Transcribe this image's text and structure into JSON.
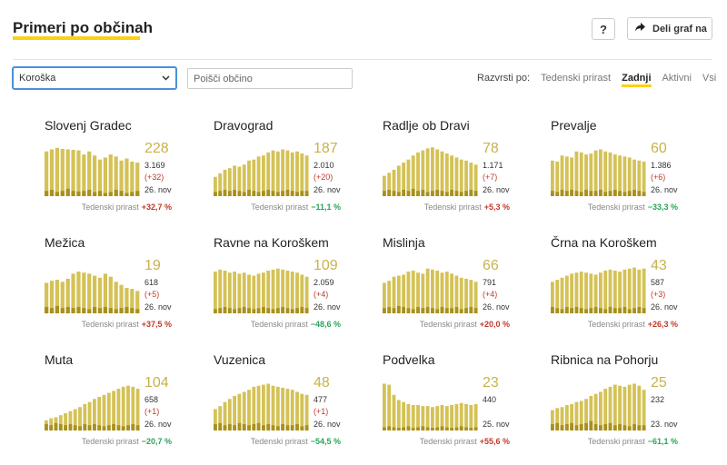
{
  "header": {
    "title": "Primeri po občinah",
    "help_label": "?",
    "share_label": "Deli graf na"
  },
  "filters": {
    "region_value": "Koroška",
    "search_placeholder": "Poišči občino",
    "sort_label": "Razvrsti po:",
    "sort_options": [
      "Tedenski prirast",
      "Zadnji",
      "Aktivni",
      "Vsi"
    ],
    "sort_active": 1
  },
  "colors": {
    "bar": "#d4c256",
    "bar_dark": "#a8901f",
    "accent": "#fcd116",
    "up": "#c0392b",
    "down": "#27a559"
  },
  "growth_label": "Tedenski prirast",
  "municipalities": [
    {
      "name": "Slovenj Gradec",
      "active": "228",
      "total": "3.169",
      "delta": "(+32)",
      "date": "26. nov",
      "growth": "+32,7 %",
      "trend": "up",
      "bars": [
        88,
        92,
        95,
        93,
        92,
        91,
        90,
        82,
        88,
        80,
        72,
        76,
        82,
        78,
        70,
        74,
        68,
        66
      ],
      "low": [
        0.1,
        0.12,
        0.08,
        0.1,
        0.14,
        0.1,
        0.09,
        0.1,
        0.12,
        0.08,
        0.1,
        0.06,
        0.08,
        0.12,
        0.1,
        0.06,
        0.08,
        0.1
      ]
    },
    {
      "name": "Dravograd",
      "active": "187",
      "total": "2.010",
      "delta": "(+20)",
      "date": "26. nov",
      "growth": "−11,1 %",
      "trend": "down",
      "bars": [
        38,
        45,
        52,
        55,
        60,
        58,
        62,
        70,
        72,
        78,
        80,
        86,
        90,
        88,
        92,
        90,
        86,
        88,
        84,
        80
      ],
      "low": [
        0.08,
        0.1,
        0.12,
        0.1,
        0.12,
        0.1,
        0.08,
        0.12,
        0.1,
        0.08,
        0.1,
        0.12,
        0.1,
        0.08,
        0.1,
        0.12,
        0.1,
        0.08,
        0.1,
        0.1
      ]
    },
    {
      "name": "Radlje ob Dravi",
      "active": "78",
      "total": "1.171",
      "delta": "(+7)",
      "date": "26. nov",
      "growth": "+5,3 %",
      "trend": "up",
      "bars": [
        40,
        46,
        52,
        60,
        66,
        72,
        80,
        86,
        90,
        94,
        96,
        92,
        88,
        84,
        80,
        76,
        72,
        70,
        66,
        62
      ],
      "low": [
        0.1,
        0.12,
        0.1,
        0.08,
        0.12,
        0.1,
        0.14,
        0.1,
        0.12,
        0.08,
        0.1,
        0.12,
        0.1,
        0.08,
        0.12,
        0.1,
        0.08,
        0.1,
        0.12,
        0.1
      ]
    },
    {
      "name": "Prevalje",
      "active": "60",
      "total": "1.386",
      "delta": "(+6)",
      "date": "26. nov",
      "growth": "−33,3 %",
      "trend": "down",
      "bars": [
        70,
        68,
        80,
        78,
        76,
        88,
        86,
        82,
        84,
        90,
        92,
        88,
        86,
        82,
        80,
        78,
        76,
        72,
        70,
        68
      ],
      "low": [
        0.1,
        0.08,
        0.12,
        0.1,
        0.12,
        0.1,
        0.08,
        0.12,
        0.1,
        0.1,
        0.12,
        0.08,
        0.1,
        0.12,
        0.1,
        0.08,
        0.1,
        0.12,
        0.1,
        0.08
      ]
    },
    {
      "name": "Mežica",
      "active": "19",
      "total": "618",
      "delta": "(+5)",
      "date": "26. nov",
      "growth": "+37,5 %",
      "trend": "up",
      "bars": [
        60,
        64,
        66,
        62,
        68,
        78,
        82,
        80,
        78,
        74,
        70,
        78,
        72,
        62,
        56,
        50,
        48,
        44
      ],
      "low": [
        0.12,
        0.1,
        0.14,
        0.1,
        0.12,
        0.1,
        0.12,
        0.1,
        0.08,
        0.12,
        0.1,
        0.12,
        0.1,
        0.08,
        0.1,
        0.12,
        0.1,
        0.08
      ]
    },
    {
      "name": "Ravne na Koroškem",
      "active": "109",
      "total": "2.059",
      "delta": "(+4)",
      "date": "26. nov",
      "growth": "−48,6 %",
      "trend": "down",
      "bars": [
        82,
        86,
        84,
        80,
        82,
        78,
        80,
        76,
        74,
        78,
        80,
        84,
        86,
        88,
        86,
        84,
        82,
        80,
        76,
        72
      ],
      "low": [
        0.08,
        0.1,
        0.12,
        0.1,
        0.08,
        0.1,
        0.12,
        0.1,
        0.08,
        0.1,
        0.12,
        0.1,
        0.08,
        0.1,
        0.12,
        0.1,
        0.08,
        0.1,
        0.12,
        0.1
      ]
    },
    {
      "name": "Mislinja",
      "active": "66",
      "total": "791",
      "delta": "(+4)",
      "date": "26. nov",
      "growth": "+20,0 %",
      "trend": "up",
      "bars": [
        60,
        64,
        72,
        74,
        76,
        82,
        84,
        80,
        78,
        88,
        86,
        84,
        80,
        82,
        78,
        74,
        70,
        68,
        66,
        62
      ],
      "low": [
        0.1,
        0.12,
        0.1,
        0.14,
        0.12,
        0.1,
        0.08,
        0.12,
        0.1,
        0.12,
        0.1,
        0.08,
        0.12,
        0.1,
        0.1,
        0.12,
        0.08,
        0.1,
        0.12,
        0.1
      ]
    },
    {
      "name": "Črna na Koroškem",
      "active": "43",
      "total": "587",
      "delta": "(+3)",
      "date": "26. nov",
      "growth": "+26,3 %",
      "trend": "up",
      "bars": [
        62,
        66,
        70,
        74,
        78,
        80,
        82,
        80,
        78,
        76,
        80,
        84,
        86,
        84,
        82,
        86,
        88,
        90,
        86,
        88
      ],
      "low": [
        0.12,
        0.1,
        0.08,
        0.12,
        0.1,
        0.12,
        0.1,
        0.08,
        0.1,
        0.12,
        0.1,
        0.08,
        0.12,
        0.1,
        0.1,
        0.12,
        0.08,
        0.1,
        0.12,
        0.1
      ]
    },
    {
      "name": "Muta",
      "active": "104",
      "total": "658",
      "delta": "(+1)",
      "date": "26. nov",
      "growth": "−20,7 %",
      "trend": "down",
      "bars": [
        20,
        24,
        26,
        30,
        34,
        38,
        42,
        46,
        52,
        56,
        62,
        66,
        70,
        74,
        78,
        82,
        86,
        88,
        86,
        82
      ],
      "low": [
        0.12,
        0.1,
        0.14,
        0.12,
        0.1,
        0.12,
        0.1,
        0.08,
        0.12,
        0.1,
        0.12,
        0.1,
        0.08,
        0.1,
        0.12,
        0.1,
        0.08,
        0.1,
        0.12,
        0.1
      ]
    },
    {
      "name": "Vuzenica",
      "active": "48",
      "total": "477",
      "delta": "(+1)",
      "date": "26. nov",
      "growth": "−54,5 %",
      "trend": "down",
      "bars": [
        42,
        48,
        56,
        62,
        68,
        72,
        76,
        80,
        86,
        88,
        90,
        92,
        88,
        86,
        84,
        82,
        80,
        76,
        72,
        70
      ],
      "low": [
        0.12,
        0.14,
        0.1,
        0.12,
        0.1,
        0.14,
        0.12,
        0.1,
        0.12,
        0.14,
        0.1,
        0.12,
        0.1,
        0.08,
        0.12,
        0.1,
        0.1,
        0.12,
        0.08,
        0.1
      ]
    },
    {
      "name": "Podvelka",
      "active": "23",
      "total": "440",
      "delta": "",
      "date": "25. nov",
      "growth": "+55,6 %",
      "trend": "up",
      "bars": [
        92,
        90,
        70,
        60,
        56,
        52,
        50,
        50,
        48,
        48,
        46,
        48,
        50,
        48,
        50,
        52,
        54,
        52,
        50,
        52
      ],
      "low": [
        0.06,
        0.08,
        0.06,
        0.05,
        0.06,
        0.08,
        0.05,
        0.06,
        0.08,
        0.06,
        0.05,
        0.06,
        0.08,
        0.06,
        0.05,
        0.06,
        0.08,
        0.06,
        0.05,
        0.06
      ]
    },
    {
      "name": "Ribnica na Pohorju",
      "active": "25",
      "total": "232",
      "delta": "",
      "date": "23. nov",
      "growth": "−61,1 %",
      "trend": "down",
      "bars": [
        40,
        44,
        46,
        50,
        52,
        56,
        58,
        62,
        68,
        72,
        76,
        82,
        86,
        90,
        88,
        86,
        90,
        92,
        88,
        80
      ],
      "low": [
        0.12,
        0.14,
        0.1,
        0.12,
        0.14,
        0.1,
        0.12,
        0.14,
        0.18,
        0.12,
        0.1,
        0.12,
        0.14,
        0.1,
        0.12,
        0.1,
        0.08,
        0.12,
        0.1,
        0.1
      ]
    }
  ]
}
